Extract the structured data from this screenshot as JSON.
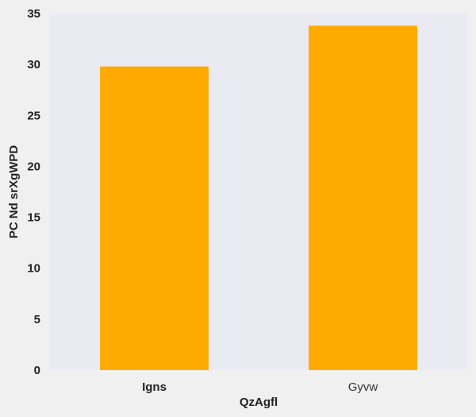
{
  "chart_data": {
    "type": "bar",
    "categories": [
      "Igns",
      "Gyvw"
    ],
    "values": [
      29.8,
      33.8
    ],
    "title": "",
    "xlabel": "QzAgfl",
    "ylabel": "PC Nd  srXgWPD",
    "ylim": [
      0,
      35
    ],
    "yticks": [
      0,
      5,
      10,
      15,
      20,
      25,
      30,
      35
    ],
    "grid": false,
    "legend": "none",
    "bar_color": "#ffaa00",
    "plot_background": "#eaeaf2",
    "page_background": "#f0f0f0"
  }
}
